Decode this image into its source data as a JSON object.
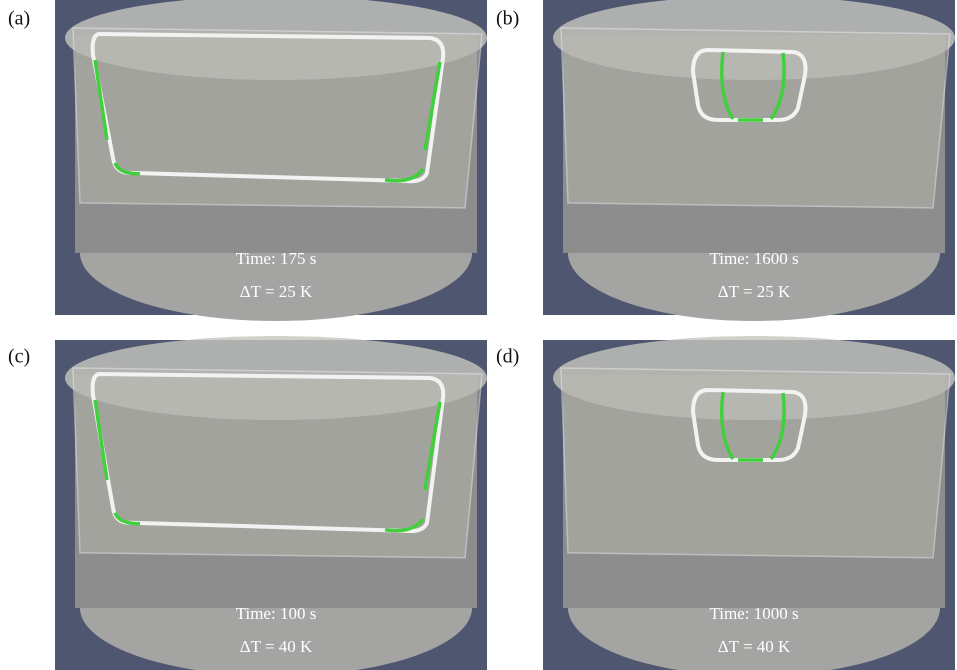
{
  "panels": [
    {
      "label": "(a)",
      "time": "Time: 175 s",
      "delta": "ΔT  = 25 K"
    },
    {
      "label": "(b)",
      "time": "Time: 1600 s",
      "delta": "ΔT = 25 K"
    },
    {
      "label": "(c)",
      "time": "Time: 100 s",
      "delta": "ΔT = 40 K"
    },
    {
      "label": "(d)",
      "time": "Time: 1000 s",
      "delta": "ΔT = 40 K"
    }
  ]
}
